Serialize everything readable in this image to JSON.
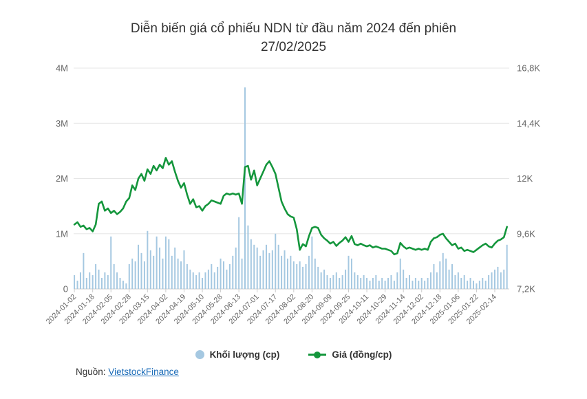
{
  "title": {
    "line1": "Diễn biến giá cổ phiếu NDN từ đầu năm 2024 đến phiên",
    "line2": "27/02/2025"
  },
  "legend": {
    "volume_label": "Khối lượng (cp)",
    "price_label": "Giá (đồng/cp)"
  },
  "source": {
    "prefix": "Nguồn:",
    "link_text": "VietstockFinance"
  },
  "colors": {
    "volume": "#a5c8e1",
    "price": "#14963c",
    "grid": "#e6e6e6",
    "axis": "#cccccc",
    "tick_label": "#666666",
    "title_text": "#333333",
    "link": "#1a6bb8"
  },
  "chart_data": {
    "type": "combo-bar-line",
    "title": "Diễn biến giá cổ phiếu NDN từ đầu năm 2024 đến phiên 27/02/2025",
    "grid": true,
    "legend_position": "bottom",
    "x_tick_labels": [
      "2024-01-02",
      "2024-01-18",
      "2024-02-05",
      "2024-02-28",
      "2024-03-15",
      "2024-04-02",
      "2024-04-19",
      "2024-05-10",
      "2024-05-28",
      "2024-06-13",
      "2024-07-01",
      "2024-07-17",
      "2024-08-02",
      "2024-08-20",
      "2024-09-09",
      "2024-09-25",
      "2024-10-11",
      "2024-10-29",
      "2024-11-14",
      "2024-12-02",
      "2024-12-18",
      "2025-01-06",
      "2025-01-22",
      "2025-02-14"
    ],
    "x_tick_every_n_points": 6,
    "left_axis": {
      "series": "Khối lượng (cp)",
      "tick_labels": [
        "0",
        "1M",
        "2M",
        "3M",
        "4M"
      ],
      "min": 0,
      "max": 4000000
    },
    "right_axis": {
      "series": "Giá (đồng/cp)",
      "tick_labels": [
        "7,2K",
        "9,6K",
        "12K",
        "14,4K",
        "16,8K"
      ],
      "min": 7200,
      "max": 16800
    },
    "series": [
      {
        "name": "Khối lượng (cp)",
        "type": "bar",
        "axis": "left",
        "unit": "cp",
        "color": "#a5c8e1",
        "values": [
          250000,
          150000,
          300000,
          650000,
          200000,
          300000,
          250000,
          450000,
          350000,
          200000,
          300000,
          250000,
          950000,
          450000,
          300000,
          200000,
          150000,
          100000,
          450000,
          550000,
          500000,
          800000,
          650000,
          500000,
          1050000,
          700000,
          600000,
          950000,
          750000,
          550000,
          950000,
          900000,
          600000,
          750000,
          550000,
          500000,
          700000,
          450000,
          350000,
          300000,
          250000,
          300000,
          200000,
          300000,
          350000,
          450000,
          300000,
          400000,
          550000,
          500000,
          350000,
          450000,
          600000,
          750000,
          1300000,
          550000,
          3650000,
          1150000,
          900000,
          800000,
          750000,
          600000,
          700000,
          800000,
          650000,
          700000,
          1000000,
          800000,
          600000,
          700000,
          550000,
          600000,
          500000,
          450000,
          500000,
          400000,
          450000,
          600000,
          950000,
          550000,
          400000,
          300000,
          350000,
          250000,
          200000,
          250000,
          300000,
          200000,
          250000,
          350000,
          600000,
          550000,
          300000,
          250000,
          200000,
          250000,
          200000,
          150000,
          200000,
          250000,
          150000,
          200000,
          150000,
          200000,
          250000,
          150000,
          300000,
          550000,
          350000,
          200000,
          250000,
          150000,
          200000,
          150000,
          200000,
          150000,
          200000,
          300000,
          450000,
          300000,
          500000,
          650000,
          550000,
          350000,
          450000,
          250000,
          300000,
          200000,
          250000,
          150000,
          200000,
          150000,
          100000,
          150000,
          200000,
          150000,
          250000,
          300000,
          350000,
          400000,
          300000,
          350000,
          800000
        ]
      },
      {
        "name": "Giá (đồng/cp)",
        "type": "line",
        "axis": "right",
        "unit": "đồng/cp",
        "color": "#14963c",
        "values": [
          10000,
          10100,
          9900,
          9950,
          9800,
          9850,
          9700,
          10000,
          10900,
          11000,
          10600,
          10700,
          10500,
          10600,
          10450,
          10550,
          10700,
          11000,
          11150,
          11700,
          11500,
          12000,
          12200,
          11900,
          12400,
          12200,
          12550,
          12350,
          12600,
          12450,
          12900,
          12600,
          12750,
          12300,
          11900,
          11600,
          11800,
          11300,
          10900,
          11100,
          10750,
          10800,
          10600,
          10800,
          10900,
          11050,
          11000,
          10950,
          10900,
          11250,
          11350,
          11300,
          11350,
          11300,
          11350,
          10900,
          12500,
          12550,
          11950,
          12350,
          11700,
          12000,
          12300,
          12600,
          12750,
          12500,
          12200,
          11600,
          11000,
          10700,
          10450,
          10350,
          10300,
          9800,
          8900,
          9150,
          9050,
          9500,
          9850,
          9900,
          9850,
          9550,
          9400,
          9300,
          9170,
          9250,
          9070,
          9200,
          9300,
          9450,
          9250,
          9500,
          9150,
          9100,
          9170,
          9100,
          9050,
          9100,
          9000,
          9050,
          9000,
          8950,
          8950,
          8900,
          8850,
          8700,
          8750,
          9200,
          9050,
          8950,
          9000,
          8950,
          8900,
          8950,
          8900,
          8950,
          8900,
          9250,
          9400,
          9450,
          9550,
          9600,
          9400,
          9250,
          9100,
          9170,
          8950,
          9000,
          8850,
          8900,
          8850,
          8800,
          8900,
          9000,
          9100,
          9170,
          9050,
          9000,
          9170,
          9300,
          9350,
          9450,
          9900
        ]
      }
    ]
  }
}
